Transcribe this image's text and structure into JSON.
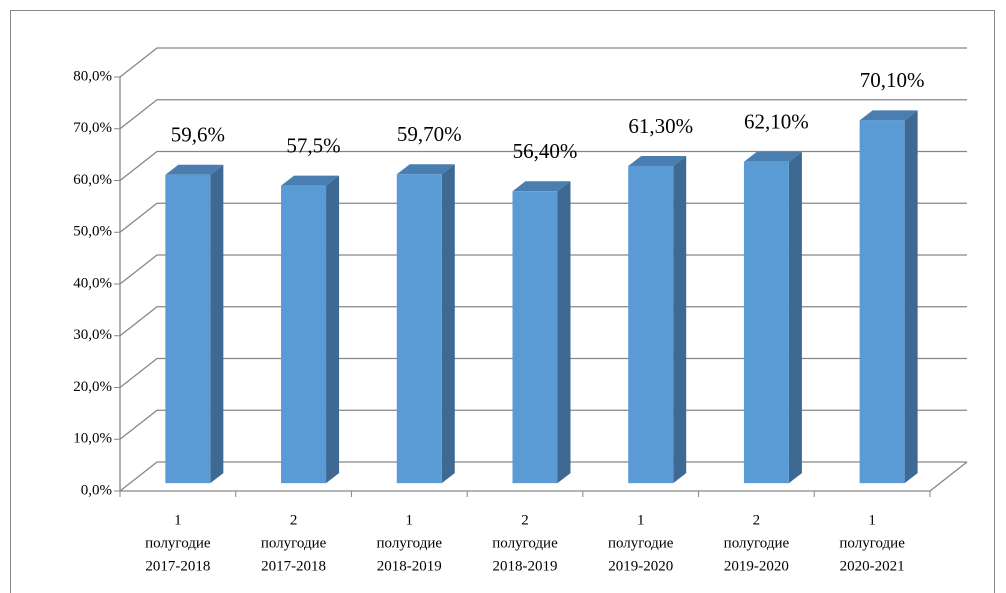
{
  "chart_data": {
    "type": "bar3d",
    "categories": [
      [
        "1",
        "полугодие",
        "2017-2018"
      ],
      [
        "2",
        "полугодие",
        "2017-2018"
      ],
      [
        "1",
        "полугодие",
        "2018-2019"
      ],
      [
        "2",
        "полугодие",
        "2018-2019"
      ],
      [
        "1",
        "полугодие",
        "2019-2020"
      ],
      [
        "2",
        "полугодие",
        "2019-2020"
      ],
      [
        "1",
        "полугодие",
        "2020-2021"
      ]
    ],
    "values": [
      59.6,
      57.5,
      59.7,
      56.4,
      61.3,
      62.1,
      70.1
    ],
    "value_labels": [
      "59,6%",
      "57,5%",
      "59,70%",
      "56,40%",
      "61,30%",
      "62,10%",
      "70,10%"
    ],
    "color": "#5b9bd5",
    "ylim": [
      0,
      80
    ],
    "yticks": [
      {
        "value": 0,
        "label": "0,0%"
      },
      {
        "value": 10,
        "label": "10,0%"
      },
      {
        "value": 20,
        "label": "20,0%"
      },
      {
        "value": 30,
        "label": "30,0%"
      },
      {
        "value": 40,
        "label": "40,0%"
      },
      {
        "value": 50,
        "label": "50,0%"
      },
      {
        "value": 60,
        "label": "60,0%"
      },
      {
        "value": 70,
        "label": "70,0%"
      },
      {
        "value": 80,
        "label": "80,0%"
      }
    ],
    "grid": true
  }
}
